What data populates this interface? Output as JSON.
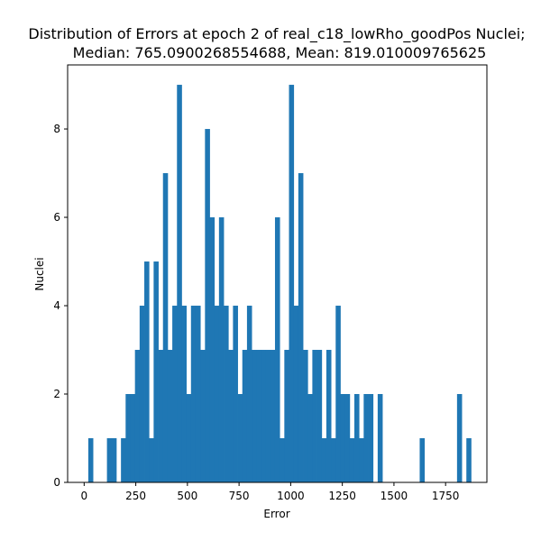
{
  "chart_data": {
    "type": "bar",
    "title_lines": [
      "Distribution of Errors at epoch 2 of real_c18_lowRho_goodPos Nuclei;",
      "Median: 765.0900268554688, Mean: 819.010009765625"
    ],
    "xlabel": "Error",
    "ylabel": "Nuclei",
    "xlim": [
      -80,
      1950
    ],
    "ylim": [
      0,
      9.45
    ],
    "xticks": [
      0,
      250,
      500,
      750,
      1000,
      1250,
      1500,
      1750
    ],
    "yticks": [
      0,
      2,
      4,
      6,
      8
    ],
    "bar_color": "#1f77b4",
    "grid": false,
    "legend": false,
    "bin_start": 20,
    "bin_width": 22.6,
    "counts": [
      1,
      0,
      0,
      0,
      1,
      1,
      0,
      1,
      2,
      2,
      3,
      4,
      5,
      1,
      5,
      3,
      7,
      3,
      4,
      9,
      4,
      2,
      4,
      4,
      3,
      8,
      6,
      4,
      6,
      4,
      3,
      4,
      2,
      3,
      4,
      3,
      3,
      3,
      3,
      3,
      6,
      1,
      3,
      9,
      4,
      7,
      3,
      2,
      3,
      3,
      1,
      3,
      1,
      4,
      2,
      2,
      1,
      2,
      1,
      2,
      2,
      0,
      2,
      0,
      0,
      0,
      0,
      0,
      0,
      0,
      0,
      1,
      0,
      0,
      0,
      0,
      0,
      0,
      0,
      2,
      0,
      1
    ]
  }
}
